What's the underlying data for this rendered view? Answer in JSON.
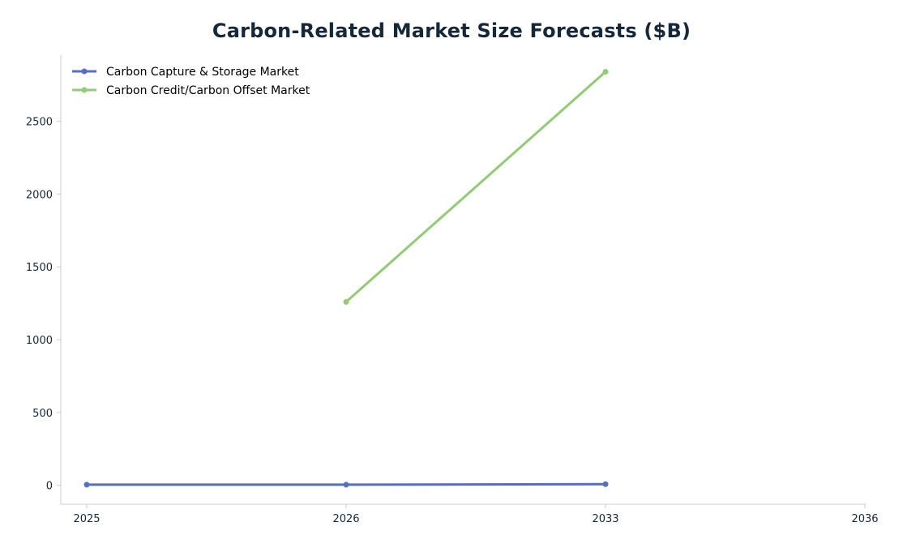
{
  "chart_data": {
    "type": "line",
    "title": "Carbon-Related Market Size Forecasts ($B)",
    "xlabel": "",
    "ylabel": "",
    "categories": [
      "2025",
      "2026",
      "2033",
      "2036"
    ],
    "yticks": [
      0,
      500,
      1000,
      1500,
      2000,
      2500
    ],
    "ylim": [
      -130,
      2960
    ],
    "grid": false,
    "legend_position": "top-left",
    "series": [
      {
        "name": "Carbon Capture & Storage Market",
        "color": "#5470c1",
        "points": [
          {
            "x": "2025",
            "y": 4.5
          },
          {
            "x": "2026",
            "y": 4.0
          },
          {
            "x": "2033",
            "y": 8.0
          }
        ]
      },
      {
        "name": "Carbon Credit/Carbon Offset Market",
        "color": "#91cc75",
        "points": [
          {
            "x": "2026",
            "y": 1260
          },
          {
            "x": "2033",
            "y": 2840
          }
        ]
      }
    ]
  }
}
